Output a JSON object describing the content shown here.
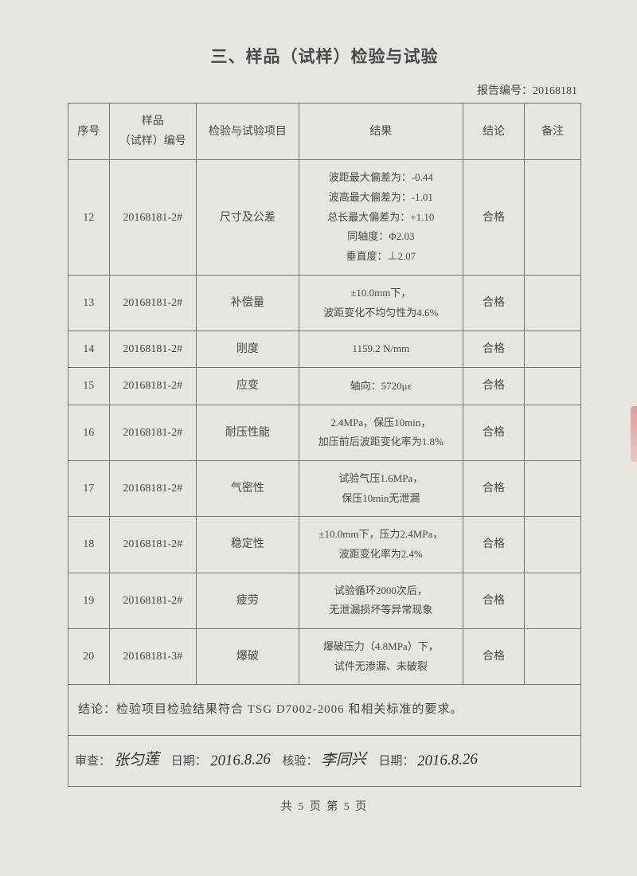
{
  "title": "三、样品（试样）检验与试验",
  "reportNumberLabel": "报告编号：",
  "reportNumber": "20168181",
  "headers": {
    "seq": "序号",
    "sample": "样品\n（试样）编号",
    "item": "检验与试验项目",
    "result": "结果",
    "conclusion": "结论",
    "remark": "备注"
  },
  "rows": [
    {
      "seq": "12",
      "sample": "20168181-2#",
      "item": "尺寸及公差",
      "result": "波距最大偏差为：-0.44\n波高最大偏差为：-1.01\n总长最大偏差为：+1.10\n同轴度：Φ2.03\n垂直度：⊥2.07",
      "conclusion": "合格",
      "remark": ""
    },
    {
      "seq": "13",
      "sample": "20168181-2#",
      "item": "补偿量",
      "result": "±10.0mm下，\n波距变化不均匀性为4.6%",
      "conclusion": "合格",
      "remark": ""
    },
    {
      "seq": "14",
      "sample": "20168181-2#",
      "item": "刚度",
      "result": "1159.2 N/mm",
      "conclusion": "合格",
      "remark": ""
    },
    {
      "seq": "15",
      "sample": "20168181-2#",
      "item": "应变",
      "result": "轴向：5720με",
      "conclusion": "合格",
      "remark": ""
    },
    {
      "seq": "16",
      "sample": "20168181-2#",
      "item": "耐压性能",
      "result": "2.4MPa，保压10min，\n加压前后波距变化率为1.8%",
      "conclusion": "合格",
      "remark": ""
    },
    {
      "seq": "17",
      "sample": "20168181-2#",
      "item": "气密性",
      "result": "试验气压1.6MPa，\n保压10min无泄漏",
      "conclusion": "合格",
      "remark": ""
    },
    {
      "seq": "18",
      "sample": "20168181-2#",
      "item": "稳定性",
      "result": "±10.0mm下，压力2.4MPa，\n波距变化率为2.4%",
      "conclusion": "合格",
      "remark": ""
    },
    {
      "seq": "19",
      "sample": "20168181-2#",
      "item": "疲劳",
      "result": "试验循环2000次后，\n无泄漏损坏等异常现象",
      "conclusion": "合格",
      "remark": ""
    },
    {
      "seq": "20",
      "sample": "20168181-3#",
      "item": "爆破",
      "result": "爆破压力（4.8MPa）下，\n试件无渗漏、未破裂",
      "conclusion": "合格",
      "remark": ""
    }
  ],
  "conclusionStatement": "结论：检验项目检验结果符合 TSG D7002-2006 和相关标准的要求。",
  "signature": {
    "reviewLabel": "审查：",
    "reviewName": "张匀莲",
    "reviewDateLabel": "日期：",
    "reviewDate": "2016.8.26",
    "verifyLabel": "核验：",
    "verifyName": "李同兴",
    "verifyDateLabel": "日期：",
    "verifyDate": "2016.8.26"
  },
  "footer": "共 5 页 第 5 页",
  "colors": {
    "background": "#e8e4e0",
    "border": "#757575",
    "text": "#4a4a4a"
  }
}
